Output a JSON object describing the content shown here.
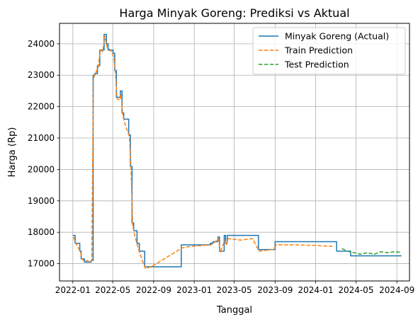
{
  "chart_data": {
    "type": "line",
    "title": "Harga Minyak Goreng: Prediksi vs Aktual",
    "xlabel": "Tanggal",
    "ylabel": "Harga (Rp)",
    "x_type": "date",
    "xlim": [
      "2021-11-22",
      "2024-10-09"
    ],
    "ylim": [
      16450,
      24650
    ],
    "x_ticks": [
      {
        "date": "2022-01-01",
        "label": "2022-01"
      },
      {
        "date": "2022-05-01",
        "label": "2022-05"
      },
      {
        "date": "2022-09-01",
        "label": "2022-09"
      },
      {
        "date": "2023-01-01",
        "label": "2023-01"
      },
      {
        "date": "2023-05-01",
        "label": "2023-05"
      },
      {
        "date": "2023-09-01",
        "label": "2023-09"
      },
      {
        "date": "2024-01-01",
        "label": "2024-01"
      },
      {
        "date": "2024-05-01",
        "label": "2024-05"
      },
      {
        "date": "2024-09-01",
        "label": "2024-09"
      }
    ],
    "y_ticks": [
      17000,
      18000,
      19000,
      20000,
      21000,
      22000,
      23000,
      24000
    ],
    "grid": true,
    "legend_position": "top-right",
    "series": [
      {
        "name": "Minyak Goreng (Actual)",
        "color": "#1f77b4",
        "style": "solid",
        "step": true,
        "points": [
          [
            "2022-01-01",
            17900
          ],
          [
            "2022-01-08",
            17650
          ],
          [
            "2022-01-22",
            17400
          ],
          [
            "2022-01-26",
            17150
          ],
          [
            "2022-02-05",
            17050
          ],
          [
            "2022-02-25",
            17100
          ],
          [
            "2022-03-03",
            23000
          ],
          [
            "2022-03-08",
            23050
          ],
          [
            "2022-03-16",
            23300
          ],
          [
            "2022-03-23",
            23800
          ],
          [
            "2022-04-05",
            24300
          ],
          [
            "2022-04-12",
            24000
          ],
          [
            "2022-04-17",
            23800
          ],
          [
            "2022-05-02",
            23700
          ],
          [
            "2022-05-07",
            23150
          ],
          [
            "2022-05-12",
            22300
          ],
          [
            "2022-05-24",
            22500
          ],
          [
            "2022-05-29",
            21800
          ],
          [
            "2022-06-03",
            21600
          ],
          [
            "2022-06-18",
            21100
          ],
          [
            "2022-06-23",
            20100
          ],
          [
            "2022-06-28",
            18300
          ],
          [
            "2022-07-03",
            18050
          ],
          [
            "2022-07-13",
            17650
          ],
          [
            "2022-07-20",
            17400
          ],
          [
            "2022-08-05",
            16900
          ],
          [
            "2022-08-10",
            16900
          ],
          [
            "2022-11-23",
            17600
          ],
          [
            "2023-02-18",
            17650
          ],
          [
            "2023-02-26",
            17700
          ],
          [
            "2023-03-13",
            17850
          ],
          [
            "2023-03-18",
            17400
          ],
          [
            "2023-04-01",
            17900
          ],
          [
            "2023-04-05",
            17650
          ],
          [
            "2023-04-10",
            17900
          ],
          [
            "2023-07-13",
            17450
          ],
          [
            "2023-09-01",
            17700
          ],
          [
            "2024-03-04",
            17400
          ],
          [
            "2024-04-15",
            17250
          ],
          [
            "2024-09-15",
            17250
          ]
        ]
      },
      {
        "name": "Train Prediction",
        "color": "#ff7f0e",
        "style": "dashed",
        "step": false,
        "points": [
          [
            "2022-01-03",
            17850
          ],
          [
            "2022-01-10",
            17650
          ],
          [
            "2022-01-24",
            17380
          ],
          [
            "2022-01-28",
            17150
          ],
          [
            "2022-02-07",
            17080
          ],
          [
            "2022-02-14",
            17100
          ],
          [
            "2022-02-21",
            17050
          ],
          [
            "2022-02-27",
            17100
          ],
          [
            "2022-03-04",
            22900
          ],
          [
            "2022-03-10",
            23050
          ],
          [
            "2022-03-18",
            23250
          ],
          [
            "2022-03-25",
            23800
          ],
          [
            "2022-04-01",
            23750
          ],
          [
            "2022-04-07",
            24250
          ],
          [
            "2022-04-14",
            23900
          ],
          [
            "2022-04-20",
            23850
          ],
          [
            "2022-05-04",
            23600
          ],
          [
            "2022-05-09",
            23100
          ],
          [
            "2022-05-14",
            22250
          ],
          [
            "2022-05-22",
            22200
          ],
          [
            "2022-05-26",
            22400
          ],
          [
            "2022-05-31",
            21750
          ],
          [
            "2022-06-05",
            21500
          ],
          [
            "2022-06-20",
            21050
          ],
          [
            "2022-06-25",
            20050
          ],
          [
            "2022-06-30",
            18200
          ],
          [
            "2022-07-05",
            17950
          ],
          [
            "2022-07-15",
            17550
          ],
          [
            "2022-07-22",
            17300
          ],
          [
            "2022-08-07",
            16850
          ],
          [
            "2022-08-25",
            16900
          ],
          [
            "2022-11-25",
            17500
          ],
          [
            "2022-12-20",
            17550
          ],
          [
            "2023-02-20",
            17600
          ],
          [
            "2023-02-28",
            17650
          ],
          [
            "2023-03-15",
            17800
          ],
          [
            "2023-03-20",
            17350
          ],
          [
            "2023-04-03",
            17750
          ],
          [
            "2023-04-08",
            17600
          ],
          [
            "2023-04-13",
            17800
          ],
          [
            "2023-05-20",
            17750
          ],
          [
            "2023-06-25",
            17800
          ],
          [
            "2023-07-15",
            17400
          ],
          [
            "2023-08-25",
            17450
          ],
          [
            "2023-09-05",
            17600
          ],
          [
            "2023-11-01",
            17600
          ],
          [
            "2024-01-01",
            17580
          ],
          [
            "2024-02-20",
            17550
          ]
        ]
      },
      {
        "name": "Test Prediction",
        "color": "#2ca02c",
        "style": "dashed",
        "step": false,
        "points": [
          [
            "2024-03-20",
            17480
          ],
          [
            "2024-04-05",
            17400
          ],
          [
            "2024-04-25",
            17350
          ],
          [
            "2024-05-15",
            17300
          ],
          [
            "2024-06-05",
            17350
          ],
          [
            "2024-06-25",
            17300
          ],
          [
            "2024-07-15",
            17380
          ],
          [
            "2024-08-05",
            17350
          ],
          [
            "2024-08-25",
            17380
          ],
          [
            "2024-09-15",
            17360
          ]
        ]
      }
    ]
  }
}
